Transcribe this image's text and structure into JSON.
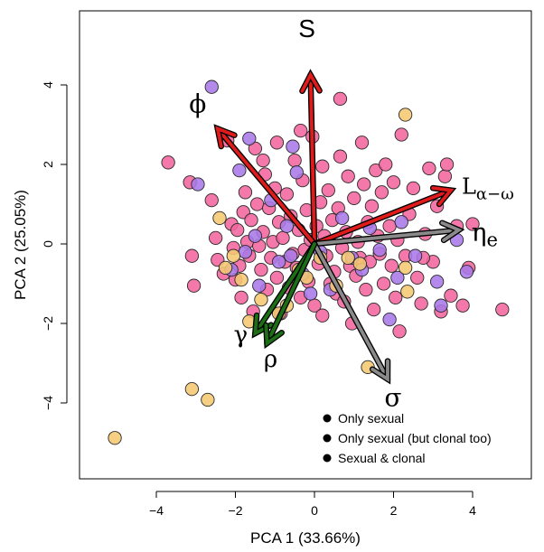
{
  "chart_data": {
    "type": "scatter",
    "xlabel": "PCA 1 (33.66%)",
    "ylabel": "PCA 2 (25.05%)",
    "xlim": [
      -6.0,
      5.5
    ],
    "ylim": [
      -6.0,
      6.0
    ],
    "xticks": [
      "−4",
      "−2",
      "0",
      "2",
      "4"
    ],
    "yticks": [
      "−4",
      "−2",
      "0",
      "2",
      "4"
    ],
    "xtick_values": [
      -4,
      -2,
      0,
      2,
      4
    ],
    "ytick_values": [
      -4,
      -2,
      0,
      2,
      4
    ],
    "grid": false,
    "legend_position": "bottom-right",
    "legend": [
      {
        "label": "Only sexual"
      },
      {
        "label": "Only sexual (but clonal too)"
      },
      {
        "label": "Sexual & clonal"
      }
    ],
    "colors": {
      "only_sexual": "#f5c872",
      "only_sexual_clonal_too": "#a879e8",
      "sexual_clonal": "#f2659e",
      "arrow_red": "#e01b1b",
      "arrow_gray": "#8a8a8a",
      "arrow_green": "#1c6e17"
    },
    "series": [
      {
        "key": "sexual_clonal",
        "values": [
          [
            -3.7,
            2.05
          ],
          [
            -3.15,
            1.55
          ],
          [
            -3.1,
            -0.3
          ],
          [
            -3.05,
            -1.05
          ],
          [
            -2.6,
            1.1
          ],
          [
            -2.5,
            0.15
          ],
          [
            -2.45,
            -0.4
          ],
          [
            -2.3,
            -0.75
          ],
          [
            -2.2,
            2.6
          ],
          [
            -2.1,
            0.5
          ],
          [
            -2.05,
            -0.1
          ],
          [
            -2.0,
            -0.9
          ],
          [
            -1.95,
            0.35
          ],
          [
            -1.9,
            -0.55
          ],
          [
            -1.85,
            -1.35
          ],
          [
            -1.8,
            0.8
          ],
          [
            -1.75,
            1.3
          ],
          [
            -1.7,
            0.05
          ],
          [
            -1.65,
            -0.3
          ],
          [
            -1.6,
            0.6
          ],
          [
            -1.55,
            -1.7
          ],
          [
            -1.5,
            2.4
          ],
          [
            -1.45,
            1.0
          ],
          [
            -1.4,
            -0.05
          ],
          [
            -1.35,
            -0.65
          ],
          [
            -1.3,
            0.3
          ],
          [
            -1.25,
            1.75
          ],
          [
            -1.2,
            -1.15
          ],
          [
            -1.15,
            0.9
          ],
          [
            -1.1,
            -0.35
          ],
          [
            -1.05,
            0.05
          ],
          [
            -1.0,
            1.4
          ],
          [
            -0.95,
            -0.85
          ],
          [
            -0.9,
            0.55
          ],
          [
            -0.85,
            -1.75
          ],
          [
            -0.8,
            0.15
          ],
          [
            -0.75,
            -0.45
          ],
          [
            -0.7,
            1.25
          ],
          [
            -0.65,
            -1.1
          ],
          [
            -0.6,
            0.7
          ],
          [
            -0.55,
            -0.25
          ],
          [
            -0.5,
            2.1
          ],
          [
            -0.45,
            -0.6
          ],
          [
            -0.4,
            0.35
          ],
          [
            -0.35,
            -1.35
          ],
          [
            -0.3,
            1.6
          ],
          [
            -0.25,
            -0.15
          ],
          [
            -0.2,
            0.85
          ],
          [
            -0.15,
            -0.95
          ],
          [
            -0.1,
            0.1
          ],
          [
            -0.05,
            2.7
          ],
          [
            0.0,
            -1.55
          ],
          [
            0.05,
            0.45
          ],
          [
            0.1,
            -0.5
          ],
          [
            0.15,
            1.05
          ],
          [
            0.2,
            -1.8
          ],
          [
            0.25,
            0.2
          ],
          [
            0.3,
            -0.3
          ],
          [
            0.35,
            1.35
          ],
          [
            0.4,
            -1.0
          ],
          [
            0.45,
            0.6
          ],
          [
            0.5,
            -0.7
          ],
          [
            0.55,
            -1.25
          ],
          [
            0.6,
            0.9
          ],
          [
            0.65,
            2.2
          ],
          [
            0.7,
            -0.1
          ],
          [
            0.75,
            -1.45
          ],
          [
            0.8,
            0.3
          ],
          [
            0.85,
            1.7
          ],
          [
            0.9,
            -0.55
          ],
          [
            0.95,
            -2.0
          ],
          [
            1.0,
            1.15
          ],
          [
            1.05,
            -0.8
          ],
          [
            1.1,
            0.05
          ],
          [
            1.15,
            -0.35
          ],
          [
            1.2,
            2.55
          ],
          [
            1.25,
            1.5
          ],
          [
            1.3,
            -1.15
          ],
          [
            1.35,
            0.55
          ],
          [
            1.4,
            -0.45
          ],
          [
            1.45,
            0.95
          ],
          [
            1.5,
            -1.65
          ],
          [
            1.55,
            1.85
          ],
          [
            1.6,
            0.2
          ],
          [
            1.65,
            -0.25
          ],
          [
            1.7,
            1.3
          ],
          [
            1.75,
            -1.0
          ],
          [
            1.8,
            2.0
          ],
          [
            1.9,
            0.45
          ],
          [
            1.95,
            -0.55
          ],
          [
            2.0,
            1.55
          ],
          [
            2.05,
            -1.35
          ],
          [
            2.1,
            0.1
          ],
          [
            2.15,
            -2.2
          ],
          [
            2.2,
            2.75
          ],
          [
            2.3,
            -0.3
          ],
          [
            2.4,
            0.75
          ],
          [
            2.5,
            1.4
          ],
          [
            2.6,
            -0.85
          ],
          [
            2.7,
            -1.5
          ],
          [
            2.8,
            0.25
          ],
          [
            2.9,
            1.9
          ],
          [
            3.0,
            -0.45
          ],
          [
            3.1,
            0.95
          ],
          [
            3.2,
            -1.7
          ],
          [
            3.3,
            1.7
          ],
          [
            3.45,
            -1.3
          ],
          [
            3.6,
            0.45
          ],
          [
            3.75,
            -1.55
          ],
          [
            3.9,
            -0.6
          ],
          [
            4.0,
            0.5
          ],
          [
            4.75,
            -1.65
          ],
          [
            0.65,
            3.65
          ],
          [
            -0.95,
            2.55
          ],
          [
            -0.35,
            2.85
          ],
          [
            0.2,
            1.95
          ],
          [
            -1.3,
            2.1
          ],
          [
            2.75,
            -0.35
          ],
          [
            3.35,
            2.0
          ]
        ]
      },
      {
        "key": "only_sexual_clonal_too",
        "values": [
          [
            -2.6,
            3.95
          ],
          [
            -2.95,
            1.5
          ],
          [
            -2.1,
            -0.65
          ],
          [
            -1.9,
            1.85
          ],
          [
            -1.75,
            -0.2
          ],
          [
            -1.5,
            0.2
          ],
          [
            -1.4,
            -1.05
          ],
          [
            -1.1,
            1.1
          ],
          [
            -0.9,
            -0.45
          ],
          [
            -0.7,
            0.45
          ],
          [
            -0.6,
            -0.3
          ],
          [
            -0.45,
            1.8
          ],
          [
            -0.3,
            -0.75
          ],
          [
            -0.1,
            -1.25
          ],
          [
            0.15,
            -0.2
          ],
          [
            0.4,
            -1.15
          ],
          [
            0.7,
            0.65
          ],
          [
            0.95,
            -0.35
          ],
          [
            1.2,
            -0.65
          ],
          [
            1.4,
            0.4
          ],
          [
            1.65,
            -0.15
          ],
          [
            1.9,
            -1.9
          ],
          [
            2.1,
            -0.85
          ],
          [
            2.2,
            0.55
          ],
          [
            2.55,
            -0.3
          ],
          [
            3.1,
            -0.95
          ],
          [
            3.2,
            -1.55
          ],
          [
            3.6,
            0.1
          ],
          [
            3.85,
            -0.7
          ],
          [
            -1.65,
            2.65
          ],
          [
            -0.55,
            2.45
          ]
        ]
      },
      {
        "key": "only_sexual",
        "values": [
          [
            -5.05,
            -4.88
          ],
          [
            -3.1,
            -3.65
          ],
          [
            -2.7,
            -3.92
          ],
          [
            -2.4,
            0.65
          ],
          [
            -2.25,
            -0.6
          ],
          [
            -2.05,
            -0.3
          ],
          [
            -1.85,
            -0.9
          ],
          [
            -1.65,
            -1.95
          ],
          [
            -1.35,
            -1.4
          ],
          [
            -0.9,
            -1.75
          ],
          [
            -0.7,
            -1.55
          ],
          [
            -0.4,
            -0.65
          ],
          [
            -0.2,
            -0.85
          ],
          [
            0.15,
            -0.35
          ],
          [
            0.55,
            -1.05
          ],
          [
            0.85,
            -0.35
          ],
          [
            1.15,
            -0.5
          ],
          [
            1.35,
            -3.1
          ],
          [
            2.3,
            -0.6
          ],
          [
            2.35,
            -1.2
          ],
          [
            2.3,
            3.25
          ]
        ]
      }
    ],
    "arrows": [
      {
        "label": "S",
        "color_key": "arrow_red",
        "x": -0.1,
        "y": 4.25
      },
      {
        "label": "ϕ",
        "color_key": "arrow_red",
        "x": -2.45,
        "y": 2.9
      },
      {
        "label": "Lα−ω",
        "label_main": "L",
        "label_sub": "α−ω",
        "color_key": "arrow_red",
        "x": 3.45,
        "y": 1.35
      },
      {
        "label": "ηe",
        "label_main": "η",
        "label_sub": "e",
        "color_key": "arrow_gray",
        "x": 3.65,
        "y": 0.35
      },
      {
        "label": "σ",
        "color_key": "arrow_gray",
        "x": 1.85,
        "y": -3.4
      },
      {
        "label": "γ",
        "color_key": "arrow_green",
        "x": -1.5,
        "y": -2.25
      },
      {
        "label": "ρ",
        "color_key": "arrow_green",
        "x": -1.2,
        "y": -2.5
      }
    ]
  }
}
